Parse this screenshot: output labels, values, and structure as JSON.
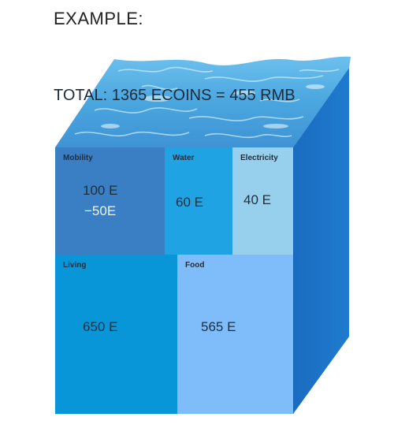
{
  "header": {
    "example_label": "EXAMPLE:"
  },
  "total": {
    "text": "TOTAL: 1365 ECOINS = 455 RMB"
  },
  "categories": [
    {
      "key": "mobility",
      "title": "Mobility",
      "values": [
        "100 E",
        "−50E"
      ],
      "color": "#3a7fc3"
    },
    {
      "key": "water",
      "title": "Water",
      "values": [
        "60 E"
      ],
      "color": "#1fa3e3"
    },
    {
      "key": "electricity",
      "title": "Electricity",
      "values": [
        "40 E"
      ],
      "color": "#97d0ec"
    },
    {
      "key": "living",
      "title": "Living",
      "values": [
        "650 E"
      ],
      "color": "#0996d8"
    },
    {
      "key": "food",
      "title": "Food",
      "values": [
        "565 E"
      ],
      "color": "#7fbdfa"
    }
  ],
  "colors": {
    "side_face": "#1a70c4",
    "water_surface": "#5eb3e6",
    "water_highlight": "#c9ecfb"
  }
}
